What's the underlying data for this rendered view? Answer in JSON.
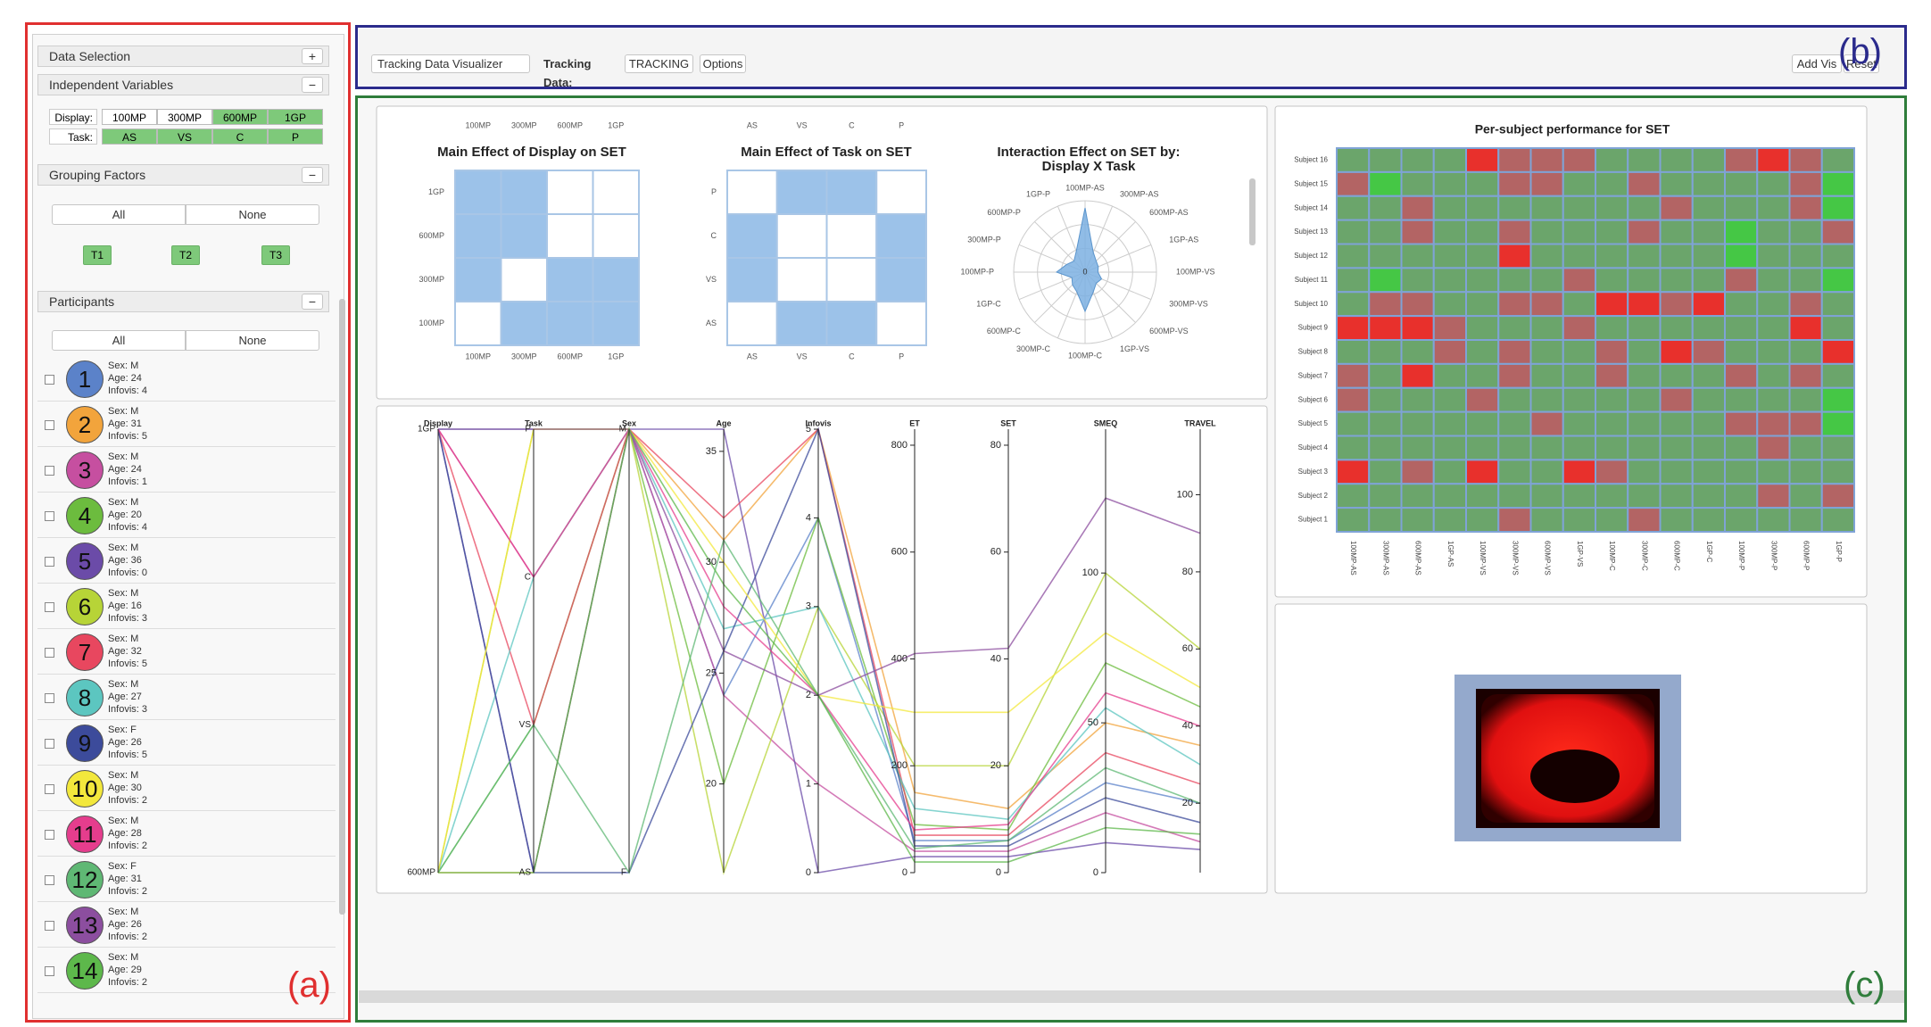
{
  "annotations": {
    "a": "(a)",
    "b": "(b)",
    "c": "(c)"
  },
  "sidebar": {
    "data_selection": {
      "title": "Data Selection",
      "toggle": "+"
    },
    "independent_variables": {
      "title": "Independent Variables",
      "toggle": "−",
      "rows": [
        {
          "label": "Display:",
          "levels": [
            "100MP",
            "300MP",
            "600MP",
            "1GP"
          ],
          "selected": [
            false,
            false,
            true,
            true
          ]
        },
        {
          "label": "Task:",
          "levels": [
            "AS",
            "VS",
            "C",
            "P"
          ],
          "selected": [
            true,
            true,
            true,
            true
          ]
        }
      ]
    },
    "grouping_factors": {
      "title": "Grouping Factors",
      "toggle": "−",
      "all": "All",
      "none": "None",
      "groups": [
        "T1",
        "T2",
        "T3"
      ]
    },
    "participants": {
      "title": "Participants",
      "toggle": "−",
      "all": "All",
      "none": "None",
      "list": [
        {
          "number": "1",
          "sex": "Sex: M",
          "age": "Age: 24",
          "infovis": "Infovis: 4",
          "color": "#5b82c9"
        },
        {
          "number": "2",
          "sex": "Sex: M",
          "age": "Age: 31",
          "infovis": "Infovis: 5",
          "color": "#f2a43c"
        },
        {
          "number": "3",
          "sex": "Sex: M",
          "age": "Age: 24",
          "infovis": "Infovis: 1",
          "color": "#c64fa0"
        },
        {
          "number": "4",
          "sex": "Sex: M",
          "age": "Age: 20",
          "infovis": "Infovis: 4",
          "color": "#6cbc3e"
        },
        {
          "number": "5",
          "sex": "Sex: M",
          "age": "Age: 36",
          "infovis": "Infovis: 0",
          "color": "#6b4ba8"
        },
        {
          "number": "6",
          "sex": "Sex: M",
          "age": "Age: 16",
          "infovis": "Infovis: 3",
          "color": "#b7d437"
        },
        {
          "number": "7",
          "sex": "Sex: M",
          "age": "Age: 32",
          "infovis": "Infovis: 5",
          "color": "#e8475f"
        },
        {
          "number": "8",
          "sex": "Sex: M",
          "age": "Age: 27",
          "infovis": "Infovis: 3",
          "color": "#5cc6c0"
        },
        {
          "number": "9",
          "sex": "Sex: F",
          "age": "Age: 26",
          "infovis": "Infovis: 5",
          "color": "#3c4b9b"
        },
        {
          "number": "10",
          "sex": "Sex: M",
          "age": "Age: 30",
          "infovis": "Infovis: 2",
          "color": "#f3e83c"
        },
        {
          "number": "11",
          "sex": "Sex: M",
          "age": "Age: 28",
          "infovis": "Infovis: 2",
          "color": "#e53d8d"
        },
        {
          "number": "12",
          "sex": "Sex: F",
          "age": "Age: 31",
          "infovis": "Infovis: 2",
          "color": "#5fb874"
        },
        {
          "number": "13",
          "sex": "Sex: M",
          "age": "Age: 26",
          "infovis": "Infovis: 2",
          "color": "#8c4e9f"
        },
        {
          "number": "14",
          "sex": "Sex: M",
          "age": "Age: 29",
          "infovis": "Infovis: 2",
          "color": "#5db84b"
        }
      ]
    }
  },
  "toolbar": {
    "visualizer": "Tracking Data Visualizer",
    "tracking_label": "Tracking Data:",
    "tracking_value": "TRACKING",
    "options": "Options",
    "add_vis": "Add Vis",
    "reset": "Reset"
  },
  "views": {
    "main_effects": [
      {
        "title": "Main Effect of Display on SET",
        "rows": [
          "1GP",
          "600MP",
          "300MP",
          "100MP"
        ],
        "columns": [
          "100MP",
          "300MP",
          "600MP",
          "1GP"
        ],
        "cells": [
          [
            1,
            1,
            0,
            0
          ],
          [
            1,
            1,
            0,
            0
          ],
          [
            1,
            0,
            1,
            1
          ],
          [
            0,
            1,
            1,
            1
          ]
        ],
        "color": "#9cc2e9"
      },
      {
        "title": "Main Effect of Task on SET",
        "rows": [
          "P",
          "C",
          "VS",
          "AS"
        ],
        "columns": [
          "AS",
          "VS",
          "C",
          "P"
        ],
        "cells": [
          [
            0,
            1,
            1,
            0
          ],
          [
            1,
            0,
            0,
            1
          ],
          [
            1,
            0,
            0,
            1
          ],
          [
            0,
            1,
            1,
            0
          ]
        ],
        "color": "#9cc2e9"
      }
    ],
    "radar": {
      "title": "Interaction Effect on SET by:",
      "subtitle": "Display X Task",
      "axes": [
        "100MP-AS",
        "300MP-AS",
        "600MP-AS",
        "1GP-AS",
        "100MP-VS",
        "300MP-VS",
        "600MP-VS",
        "1GP-VS",
        "100MP-C",
        "300MP-C",
        "600MP-C",
        "1GP-C",
        "100MP-P",
        "300MP-P",
        "600MP-P",
        "1GP-P"
      ],
      "values": [
        90,
        30,
        22,
        20,
        18,
        25,
        22,
        30,
        55,
        30,
        25,
        20,
        40,
        28,
        22,
        32
      ],
      "rlim": [
        0,
        100
      ],
      "rticks": [
        0
      ],
      "color": "#7cb0e2"
    },
    "parallel": {
      "axes": [
        {
          "name": "Display",
          "categories": [
            "1GP",
            "600MP"
          ]
        },
        {
          "name": "Task",
          "categories": [
            "P",
            "C",
            "VS",
            "AS"
          ]
        },
        {
          "name": "Sex",
          "categories": [
            "M",
            "F"
          ]
        },
        {
          "name": "Age",
          "lim": [
            16,
            36
          ],
          "ticks": [
            20,
            25,
            30,
            35
          ]
        },
        {
          "name": "Infovis",
          "lim": [
            0,
            5
          ],
          "ticks": [
            0,
            1,
            2,
            3,
            4,
            5
          ]
        },
        {
          "name": "ET",
          "lim": [
            0,
            830
          ],
          "ticks": [
            0,
            200,
            400,
            600,
            800
          ]
        },
        {
          "name": "SET",
          "lim": [
            0,
            83
          ],
          "ticks": [
            0,
            20,
            40,
            60,
            80
          ]
        },
        {
          "name": "SMEQ",
          "lim": [
            0,
            148
          ],
          "ticks": [
            0,
            50,
            100
          ]
        },
        {
          "name": "TRAVEL",
          "lim": [
            2,
            117
          ],
          "ticks": [
            20,
            40,
            60,
            80,
            100
          ]
        }
      ],
      "records": [
        {
          "color": "#5b82c9",
          "values": [
            "1GP",
            "P",
            "M",
            24,
            4,
            60,
            6,
            30,
            20
          ]
        },
        {
          "color": "#f2a43c",
          "values": [
            "600MP",
            "AS",
            "M",
            31,
            5,
            150,
            12,
            50,
            35
          ]
        },
        {
          "color": "#c64fa0",
          "values": [
            "1GP",
            "C",
            "M",
            24,
            1,
            40,
            4,
            20,
            10
          ]
        },
        {
          "color": "#6cbc3e",
          "values": [
            "600MP",
            "VS",
            "M",
            20,
            4,
            90,
            8,
            70,
            45
          ]
        },
        {
          "color": "#6b4ba8",
          "values": [
            "1GP",
            "AS",
            "M",
            36,
            0,
            30,
            3,
            10,
            8
          ]
        },
        {
          "color": "#b7d437",
          "values": [
            "600MP",
            "P",
            "M",
            16,
            3,
            200,
            20,
            100,
            60
          ]
        },
        {
          "color": "#e8475f",
          "values": [
            "1GP",
            "VS",
            "M",
            32,
            5,
            70,
            7,
            40,
            25
          ]
        },
        {
          "color": "#5cc6c0",
          "values": [
            "600MP",
            "C",
            "M",
            27,
            3,
            120,
            10,
            55,
            30
          ]
        },
        {
          "color": "#3c4b9b",
          "values": [
            "1GP",
            "AS",
            "F",
            26,
            5,
            50,
            5,
            25,
            15
          ]
        },
        {
          "color": "#f3e83c",
          "values": [
            "600MP",
            "P",
            "M",
            30,
            2,
            300,
            30,
            80,
            50
          ]
        },
        {
          "color": "#e53d8d",
          "values": [
            "1GP",
            "C",
            "M",
            28,
            2,
            80,
            9,
            60,
            40
          ]
        },
        {
          "color": "#5fb874",
          "values": [
            "600MP",
            "VS",
            "F",
            31,
            2,
            45,
            6,
            35,
            20
          ]
        },
        {
          "color": "#8c4e9f",
          "values": [
            "1GP",
            "P",
            "M",
            26,
            2,
            410,
            42,
            125,
            90
          ]
        },
        {
          "color": "#5db84b",
          "values": [
            "600MP",
            "AS",
            "M",
            29,
            2,
            20,
            2,
            15,
            12
          ]
        }
      ]
    },
    "heatmap": {
      "title": "Per-subject performance for SET",
      "rows": [
        "Subject 16",
        "Subject 15",
        "Subject 14",
        "Subject 13",
        "Subject 12",
        "Subject 11",
        "Subject 10",
        "Subject 9",
        "Subject 8",
        "Subject 7",
        "Subject 6",
        "Subject 5",
        "Subject 4",
        "Subject 3",
        "Subject 2",
        "Subject 1"
      ],
      "columns": [
        "100MP-AS",
        "300MP-AS",
        "600MP-AS",
        "1GP-AS",
        "100MP-VS",
        "300MP-VS",
        "600MP-VS",
        "1GP-VS",
        "100MP-C",
        "300MP-C",
        "600MP-C",
        "1GP-C",
        "100MP-P",
        "300MP-P",
        "600MP-P",
        "1GP-P"
      ],
      "values": [
        [
          1,
          1,
          1,
          1,
          -2,
          -1,
          -1,
          -1,
          1,
          1,
          1,
          1,
          -1,
          -2,
          -1,
          1
        ],
        [
          -1,
          2,
          1,
          1,
          1,
          -1,
          -1,
          1,
          1,
          -1,
          1,
          1,
          1,
          1,
          -1,
          2
        ],
        [
          1,
          1,
          -1,
          1,
          1,
          1,
          1,
          1,
          1,
          1,
          -1,
          1,
          1,
          1,
          -1,
          2
        ],
        [
          1,
          1,
          -1,
          1,
          1,
          -1,
          1,
          1,
          1,
          -1,
          1,
          1,
          2,
          1,
          1,
          -1
        ],
        [
          1,
          1,
          1,
          1,
          1,
          -2,
          1,
          1,
          1,
          1,
          1,
          1,
          2,
          1,
          1,
          1
        ],
        [
          1,
          2,
          1,
          1,
          1,
          1,
          1,
          -1,
          1,
          1,
          1,
          1,
          -1,
          1,
          1,
          2
        ],
        [
          1,
          -1,
          -1,
          1,
          1,
          -1,
          -1,
          1,
          -2,
          -2,
          -1,
          -2,
          1,
          1,
          -1,
          1
        ],
        [
          -2,
          -2,
          -2,
          -1,
          1,
          1,
          1,
          -1,
          1,
          1,
          1,
          1,
          1,
          1,
          -2,
          1
        ],
        [
          1,
          1,
          1,
          -1,
          1,
          -1,
          1,
          1,
          -1,
          1,
          -2,
          -1,
          1,
          1,
          1,
          -2
        ],
        [
          -1,
          1,
          -2,
          1,
          1,
          -1,
          1,
          1,
          -1,
          1,
          1,
          1,
          -1,
          1,
          -1,
          1
        ],
        [
          -1,
          1,
          1,
          1,
          -1,
          1,
          1,
          1,
          1,
          1,
          -1,
          1,
          1,
          1,
          1,
          2
        ],
        [
          1,
          1,
          1,
          1,
          1,
          1,
          -1,
          1,
          1,
          1,
          1,
          1,
          -1,
          -1,
          -1,
          2
        ],
        [
          1,
          1,
          1,
          1,
          1,
          1,
          1,
          1,
          1,
          1,
          1,
          1,
          1,
          -1,
          1,
          1
        ],
        [
          -2,
          1,
          -1,
          1,
          -2,
          1,
          1,
          -2,
          -1,
          1,
          1,
          1,
          1,
          1,
          1,
          1
        ],
        [
          1,
          1,
          1,
          1,
          1,
          1,
          1,
          1,
          1,
          1,
          1,
          1,
          1,
          -1,
          1,
          -1
        ],
        [
          1,
          1,
          1,
          1,
          1,
          -1,
          1,
          1,
          1,
          -1,
          1,
          1,
          1,
          1,
          1,
          1
        ]
      ],
      "color_scale": {
        "-2": "#e8302c",
        "-1": "#b36464",
        "1": "#6ba56b",
        "2": "#45c745"
      }
    }
  }
}
